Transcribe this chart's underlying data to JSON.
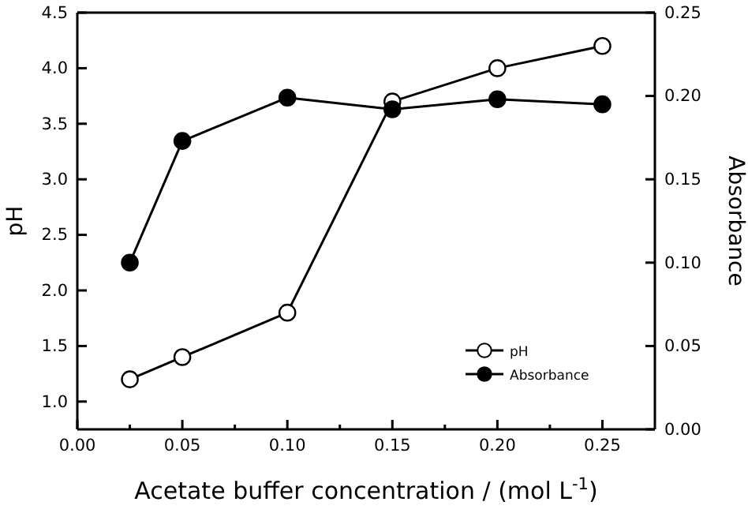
{
  "chart_data": {
    "type": "line",
    "xlabel": "Acetate buffer concentration / (mol L$^{-1}$)",
    "ylabel": "pH",
    "y2label": "Absorbance",
    "x": [
      0.025,
      0.05,
      0.1,
      0.15,
      0.2,
      0.25
    ],
    "xlim": [
      0,
      0.275
    ],
    "xticks": [
      {
        "value": 0,
        "label": "0.00"
      },
      {
        "value": 0.025,
        "label": null
      },
      {
        "value": 0.05,
        "label": "0.05"
      },
      {
        "value": 0.075,
        "label": null
      },
      {
        "value": 0.1,
        "label": "0.10"
      },
      {
        "value": 0.125,
        "label": null
      },
      {
        "value": 0.15,
        "label": "0.15"
      },
      {
        "value": 0.175,
        "label": null
      },
      {
        "value": 0.2,
        "label": "0.20"
      },
      {
        "value": 0.225,
        "label": null
      },
      {
        "value": 0.25,
        "label": "0.25"
      }
    ],
    "ylim": [
      0.75,
      4.5
    ],
    "yticks": [
      {
        "value": 1,
        "label": "1.0"
      },
      1.5,
      {
        "value": 2,
        "label": "2.0"
      },
      2.5,
      {
        "value": 3,
        "label": "3.0"
      },
      3.5,
      {
        "value": 4,
        "label": "4.0"
      },
      4.5
    ],
    "y2lim": [
      0,
      0.25
    ],
    "y2ticks": [
      {
        "value": 0,
        "label": "0.00"
      },
      0.05,
      {
        "value": 0.1,
        "label": "0.10"
      },
      0.15,
      {
        "value": 0.2,
        "label": "0.20"
      },
      0.25
    ],
    "series": [
      {
        "name": "pH",
        "color": "#000000",
        "marker": "circle",
        "values": [
          1.2,
          1.4,
          1.8,
          3.7,
          4.0,
          4.2
        ]
      },
      {
        "name": "Absorbance",
        "color": "#000000",
        "marker": "circle",
        "axis": "y2",
        "values": [
          0.1,
          0.173,
          0.199,
          0.192,
          0.198,
          0.195
        ]
      }
    ],
    "legend": "bottom right",
    "grid": false
  }
}
